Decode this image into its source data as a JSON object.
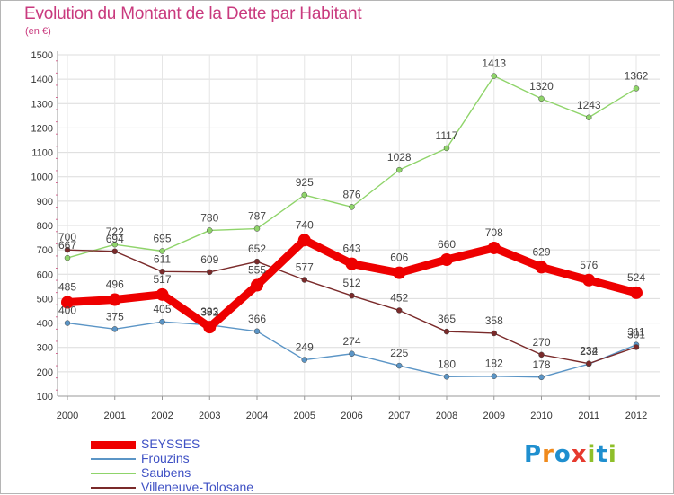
{
  "header": {
    "title": "Evolution du Montant de la Dette par Habitant",
    "subtitle": "(en €)"
  },
  "logo": {
    "text": "Proxiti",
    "letter_colors": [
      "#1f8fcf",
      "#f08a1c",
      "#1f8fcf",
      "#e63a2e",
      "#8fbf2a",
      "#1f8fcf",
      "#8fbf2a"
    ]
  },
  "chart_data": {
    "type": "line",
    "title": "Evolution du Montant de la Dette par Habitant",
    "subtitle": "(en €)",
    "x": [
      "2000",
      "2001",
      "2002",
      "2003",
      "2004",
      "2005",
      "2006",
      "2007",
      "2008",
      "2009",
      "2010",
      "2011",
      "2012"
    ],
    "ylim": [
      100,
      1500
    ],
    "yticks": [
      "100",
      "200",
      "300",
      "400",
      "500",
      "600",
      "700",
      "800",
      "900",
      "1000",
      "1100",
      "1200",
      "1300",
      "1400",
      "1500"
    ],
    "grid": true,
    "legend_position": "bottom-left",
    "series": [
      {
        "name": "SEYSSES",
        "color": "#ee0000",
        "emphasis": true,
        "values": [
          485,
          496,
          517,
          383,
          555,
          740,
          643,
          606,
          660,
          708,
          629,
          576,
          524
        ]
      },
      {
        "name": "Frouzins",
        "color": "#5b95c6",
        "values": [
          400,
          375,
          405,
          392,
          366,
          249,
          274,
          225,
          180,
          182,
          178,
          232,
          311
        ]
      },
      {
        "name": "Saubens",
        "color": "#8fd46a",
        "values": [
          667,
          722,
          695,
          780,
          787,
          925,
          876,
          1028,
          1117,
          1413,
          1320,
          1243,
          1362
        ]
      },
      {
        "name": "Villeneuve-Tolosane",
        "color": "#7a2a2a",
        "values": [
          700,
          694,
          611,
          609,
          652,
          577,
          512,
          452,
          365,
          358,
          270,
          234,
          301
        ]
      }
    ]
  }
}
